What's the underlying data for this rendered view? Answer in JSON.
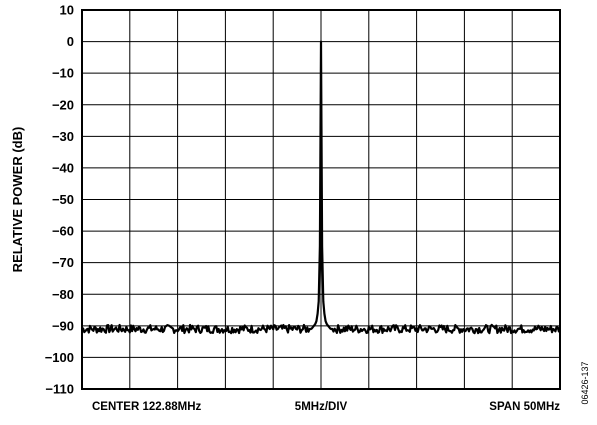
{
  "chart_data": {
    "type": "line",
    "title": "",
    "ylabel": "RELATIVE POWER (dB)",
    "xlabel": "",
    "ylim": [
      -110,
      10
    ],
    "y_ticks": [
      10,
      0,
      -10,
      -20,
      -30,
      -40,
      -50,
      -60,
      -70,
      -80,
      -90,
      -100,
      -110
    ],
    "xlim": [
      97.88,
      147.88
    ],
    "x_unit": "MHz",
    "x_divisions": 10,
    "grid": true,
    "bottom_labels": {
      "left": "CENTER 122.88MHz",
      "middle": "5MHz/DIV",
      "right": "SPAN 50MHz"
    },
    "figure_id": "06426-137",
    "series": [
      {
        "x": [
          97.88,
          100.38,
          102.88,
          105.38,
          107.88,
          110.38,
          112.88,
          115.38,
          117.88,
          120.38,
          121.88,
          122.38,
          122.63,
          122.78,
          122.88,
          122.98,
          123.13,
          123.38,
          123.88,
          125.38,
          127.88,
          130.38,
          132.88,
          135.38,
          137.88,
          140.38,
          142.88,
          145.38,
          147.88
        ],
        "values": [
          -91,
          -91,
          -91,
          -91,
          -91,
          -91,
          -91,
          -91,
          -91,
          -91,
          -91,
          -89,
          -84,
          -62,
          0,
          -62,
          -84,
          -89,
          -91,
          -91,
          -91,
          -91,
          -91,
          -91,
          -91,
          -91,
          -91,
          -91,
          -91
        ]
      }
    ]
  }
}
